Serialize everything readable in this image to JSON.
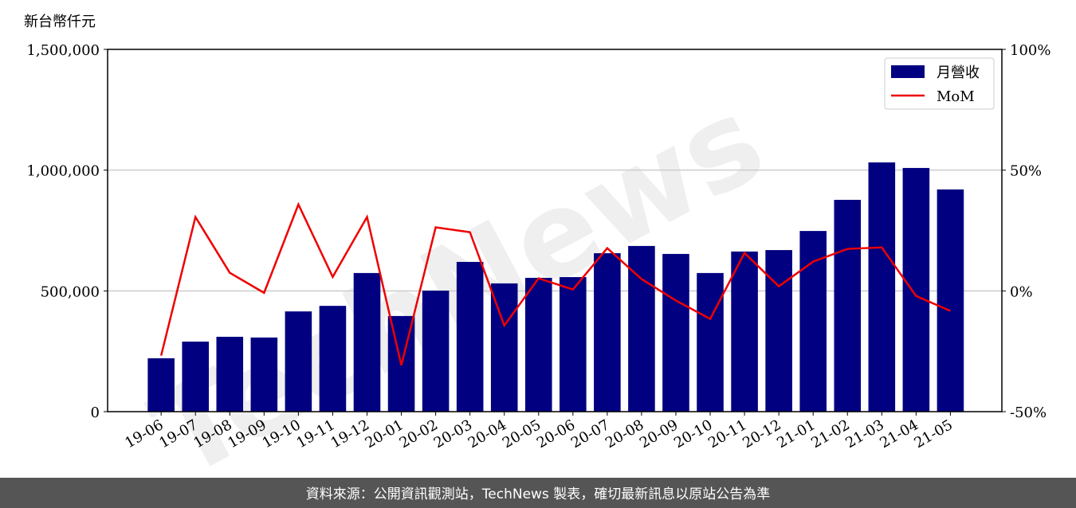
{
  "chart_data": {
    "type": "bar_line",
    "ylabel": "新台幣仟元",
    "watermark": "TechNews",
    "footer": "資料來源：公開資訊觀測站，TechNews 製表，確切最新訊息以原站公告為準",
    "categories": [
      "19-06",
      "19-07",
      "19-08",
      "19-09",
      "19-10",
      "19-11",
      "19-12",
      "20-01",
      "20-02",
      "20-03",
      "20-04",
      "20-05",
      "20-06",
      "20-07",
      "20-08",
      "20-09",
      "20-10",
      "20-11",
      "20-12",
      "21-01",
      "21-02",
      "21-03",
      "21-04",
      "21-05"
    ],
    "series": [
      {
        "name": "月營收",
        "color": "#000080",
        "kind": "bar",
        "values": [
          221000,
          290000,
          310000,
          307000,
          415000,
          438000,
          574000,
          396000,
          501000,
          620000,
          531000,
          554000,
          557000,
          656000,
          686000,
          653000,
          574000,
          663000,
          669000,
          748000,
          877000,
          1032000,
          1009000,
          920000
        ]
      },
      {
        "name": "MoM",
        "color": "#ee0000",
        "kind": "line",
        "axis": "y2",
        "values": [
          -26.8,
          30.6,
          7.5,
          -0.8,
          35.8,
          5.8,
          30.6,
          -30.8,
          26.3,
          24.3,
          -14.3,
          5.2,
          0.6,
          17.7,
          4.9,
          -4.0,
          -11.6,
          15.7,
          1.9,
          12.1,
          17.4,
          18.0,
          -2.1,
          -8.3
        ]
      }
    ],
    "ylim": [
      0,
      1500000
    ],
    "yticks": [
      0,
      {
        "value": 500000,
        "label": "500,000"
      },
      {
        "value": 1000000,
        "label": "1,000,000"
      },
      {
        "value": 1500000,
        "label": "1,500,000"
      }
    ],
    "y2lim": [
      -50,
      100
    ],
    "y2ticks": [
      {
        "value": -50,
        "label": "-50%"
      },
      {
        "value": 0,
        "label": "0%"
      },
      {
        "value": 50,
        "label": "50%"
      },
      {
        "value": 100,
        "label": "100%"
      }
    ],
    "grid": true,
    "legend": "upper right"
  }
}
